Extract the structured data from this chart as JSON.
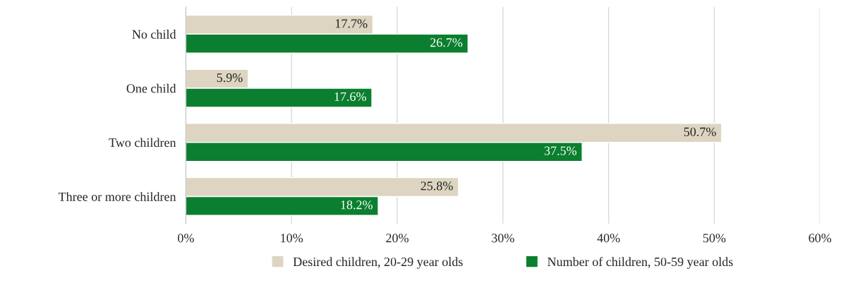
{
  "chart_data": {
    "type": "bar",
    "orientation": "horizontal",
    "categories": [
      "No child",
      "One child",
      "Two children",
      "Three or more children"
    ],
    "series": [
      {
        "name": "Desired children, 20-29 year olds",
        "color": "#ddd5c1",
        "values": [
          17.7,
          5.9,
          50.7,
          25.8
        ],
        "value_labels": [
          "17.7%",
          "5.9%",
          "50.7%",
          "25.8%"
        ]
      },
      {
        "name": "Number of children, 50-59 year olds",
        "color": "#0b7f2f",
        "values": [
          26.7,
          17.6,
          37.5,
          18.2
        ],
        "value_labels": [
          "26.7%",
          "17.6%",
          "37.5%",
          "18.2%"
        ]
      }
    ],
    "xlim": [
      0,
      60
    ],
    "xticks": [
      {
        "value": 0,
        "label": "0%"
      },
      {
        "value": 10,
        "label": "10%"
      },
      {
        "value": 20,
        "label": "20%"
      },
      {
        "value": 30,
        "label": "30%"
      },
      {
        "value": 40,
        "label": "40%"
      },
      {
        "value": 50,
        "label": "50%"
      },
      {
        "value": 60,
        "label": "60%"
      }
    ],
    "grid": "x",
    "legend": "bottom"
  }
}
